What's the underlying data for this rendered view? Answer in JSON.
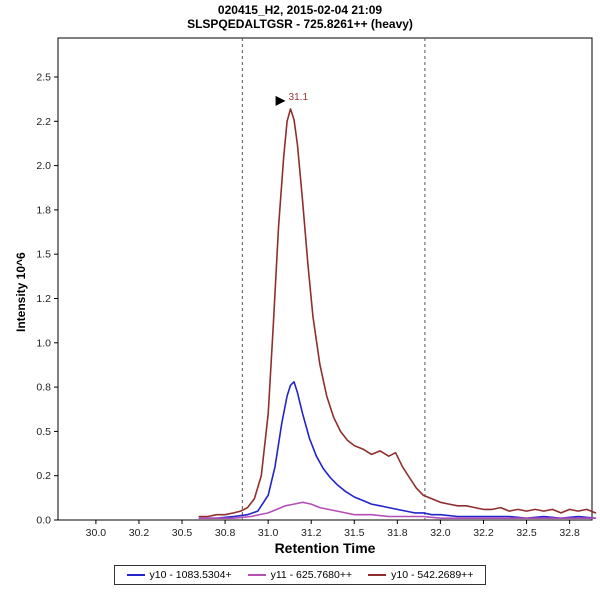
{
  "chart_data": {
    "type": "line",
    "title": "020415_H2, 2015-02-04 21:09",
    "subtitle": "SLSPQEDALTGSR - 725.8261++ (heavy)",
    "xlabel": "Retention Time",
    "ylabel": "Intensity 10^6",
    "xlim": [
      29.78,
      32.88
    ],
    "ylim": [
      0,
      2.72
    ],
    "grid": false,
    "legend_position": "bottom",
    "x_ticks": {
      "values": [
        30.0,
        30.25,
        30.5,
        30.75,
        31.0,
        31.25,
        31.5,
        31.75,
        32.0,
        32.25,
        32.5,
        32.75
      ],
      "labels": [
        "30.0",
        "30.2",
        "30.5",
        "30.8",
        "31.0",
        "31.2",
        "31.5",
        "31.8",
        "32.0",
        "32.2",
        "32.5",
        "32.8"
      ]
    },
    "y_ticks": {
      "values": [
        0,
        0.25,
        0.5,
        0.75,
        1.0,
        1.25,
        1.5,
        1.75,
        2.0,
        2.25,
        2.5
      ],
      "labels": [
        "0.0",
        "0.2",
        "0.5",
        "0.8",
        "1.0",
        "1.2",
        "1.5",
        "1.8",
        "2.0",
        "2.2",
        "2.5"
      ]
    },
    "integration_boundaries": [
      30.85,
      31.91
    ],
    "annotation": {
      "text": "31.1",
      "x": 31.13,
      "y": 2.32,
      "color": "#9c3434"
    },
    "series": [
      {
        "name": "y10 - 1083.5304+",
        "color": "#2323cc",
        "x": [
          30.6,
          30.7,
          30.8,
          30.88,
          30.94,
          31.0,
          31.04,
          31.08,
          31.11,
          31.13,
          31.15,
          31.17,
          31.2,
          31.24,
          31.28,
          31.32,
          31.36,
          31.4,
          31.45,
          31.5,
          31.55,
          31.6,
          31.65,
          31.7,
          31.75,
          31.8,
          31.85,
          31.9,
          31.95,
          32.0,
          32.1,
          32.2,
          32.3,
          32.4,
          32.5,
          32.6,
          32.7,
          32.8,
          32.9
        ],
        "y": [
          0.01,
          0.01,
          0.02,
          0.03,
          0.05,
          0.14,
          0.3,
          0.55,
          0.7,
          0.76,
          0.78,
          0.72,
          0.6,
          0.46,
          0.36,
          0.29,
          0.24,
          0.2,
          0.16,
          0.13,
          0.11,
          0.09,
          0.08,
          0.07,
          0.06,
          0.05,
          0.04,
          0.04,
          0.03,
          0.03,
          0.02,
          0.02,
          0.02,
          0.02,
          0.01,
          0.02,
          0.01,
          0.02,
          0.01
        ]
      },
      {
        "name": "y11 - 625.7680++",
        "color": "#b54fb8",
        "x": [
          30.6,
          30.7,
          30.8,
          30.9,
          31.0,
          31.05,
          31.1,
          31.15,
          31.2,
          31.25,
          31.3,
          31.35,
          31.4,
          31.45,
          31.5,
          31.6,
          31.7,
          31.8,
          31.9,
          32.0,
          32.1,
          32.2,
          32.3,
          32.4,
          32.5,
          32.6,
          32.7,
          32.8,
          32.9
        ],
        "y": [
          0.01,
          0.01,
          0.01,
          0.02,
          0.04,
          0.06,
          0.08,
          0.09,
          0.1,
          0.09,
          0.07,
          0.06,
          0.05,
          0.04,
          0.03,
          0.03,
          0.02,
          0.02,
          0.02,
          0.01,
          0.01,
          0.01,
          0.01,
          0.01,
          0.01,
          0.01,
          0.01,
          0.01,
          0.01
        ]
      },
      {
        "name": "y10 - 542.2689++",
        "color": "#8f2f2d",
        "x": [
          30.6,
          30.65,
          30.7,
          30.75,
          30.8,
          30.84,
          30.88,
          30.92,
          30.96,
          31.0,
          31.03,
          31.06,
          31.09,
          31.11,
          31.13,
          31.15,
          31.17,
          31.2,
          31.23,
          31.26,
          31.3,
          31.34,
          31.38,
          31.42,
          31.46,
          31.5,
          31.55,
          31.6,
          31.65,
          31.7,
          31.74,
          31.78,
          31.82,
          31.86,
          31.9,
          31.95,
          32.0,
          32.05,
          32.1,
          32.15,
          32.2,
          32.25,
          32.3,
          32.35,
          32.4,
          32.45,
          32.5,
          32.55,
          32.6,
          32.65,
          32.7,
          32.75,
          32.8,
          32.85,
          32.9
        ],
        "y": [
          0.02,
          0.02,
          0.03,
          0.03,
          0.04,
          0.05,
          0.07,
          0.12,
          0.25,
          0.6,
          1.1,
          1.65,
          2.05,
          2.25,
          2.32,
          2.26,
          2.12,
          1.8,
          1.45,
          1.15,
          0.88,
          0.7,
          0.58,
          0.5,
          0.45,
          0.42,
          0.4,
          0.37,
          0.39,
          0.36,
          0.38,
          0.3,
          0.24,
          0.18,
          0.14,
          0.12,
          0.1,
          0.09,
          0.08,
          0.08,
          0.07,
          0.06,
          0.06,
          0.07,
          0.05,
          0.06,
          0.05,
          0.06,
          0.05,
          0.06,
          0.04,
          0.06,
          0.05,
          0.06,
          0.04
        ]
      }
    ]
  }
}
